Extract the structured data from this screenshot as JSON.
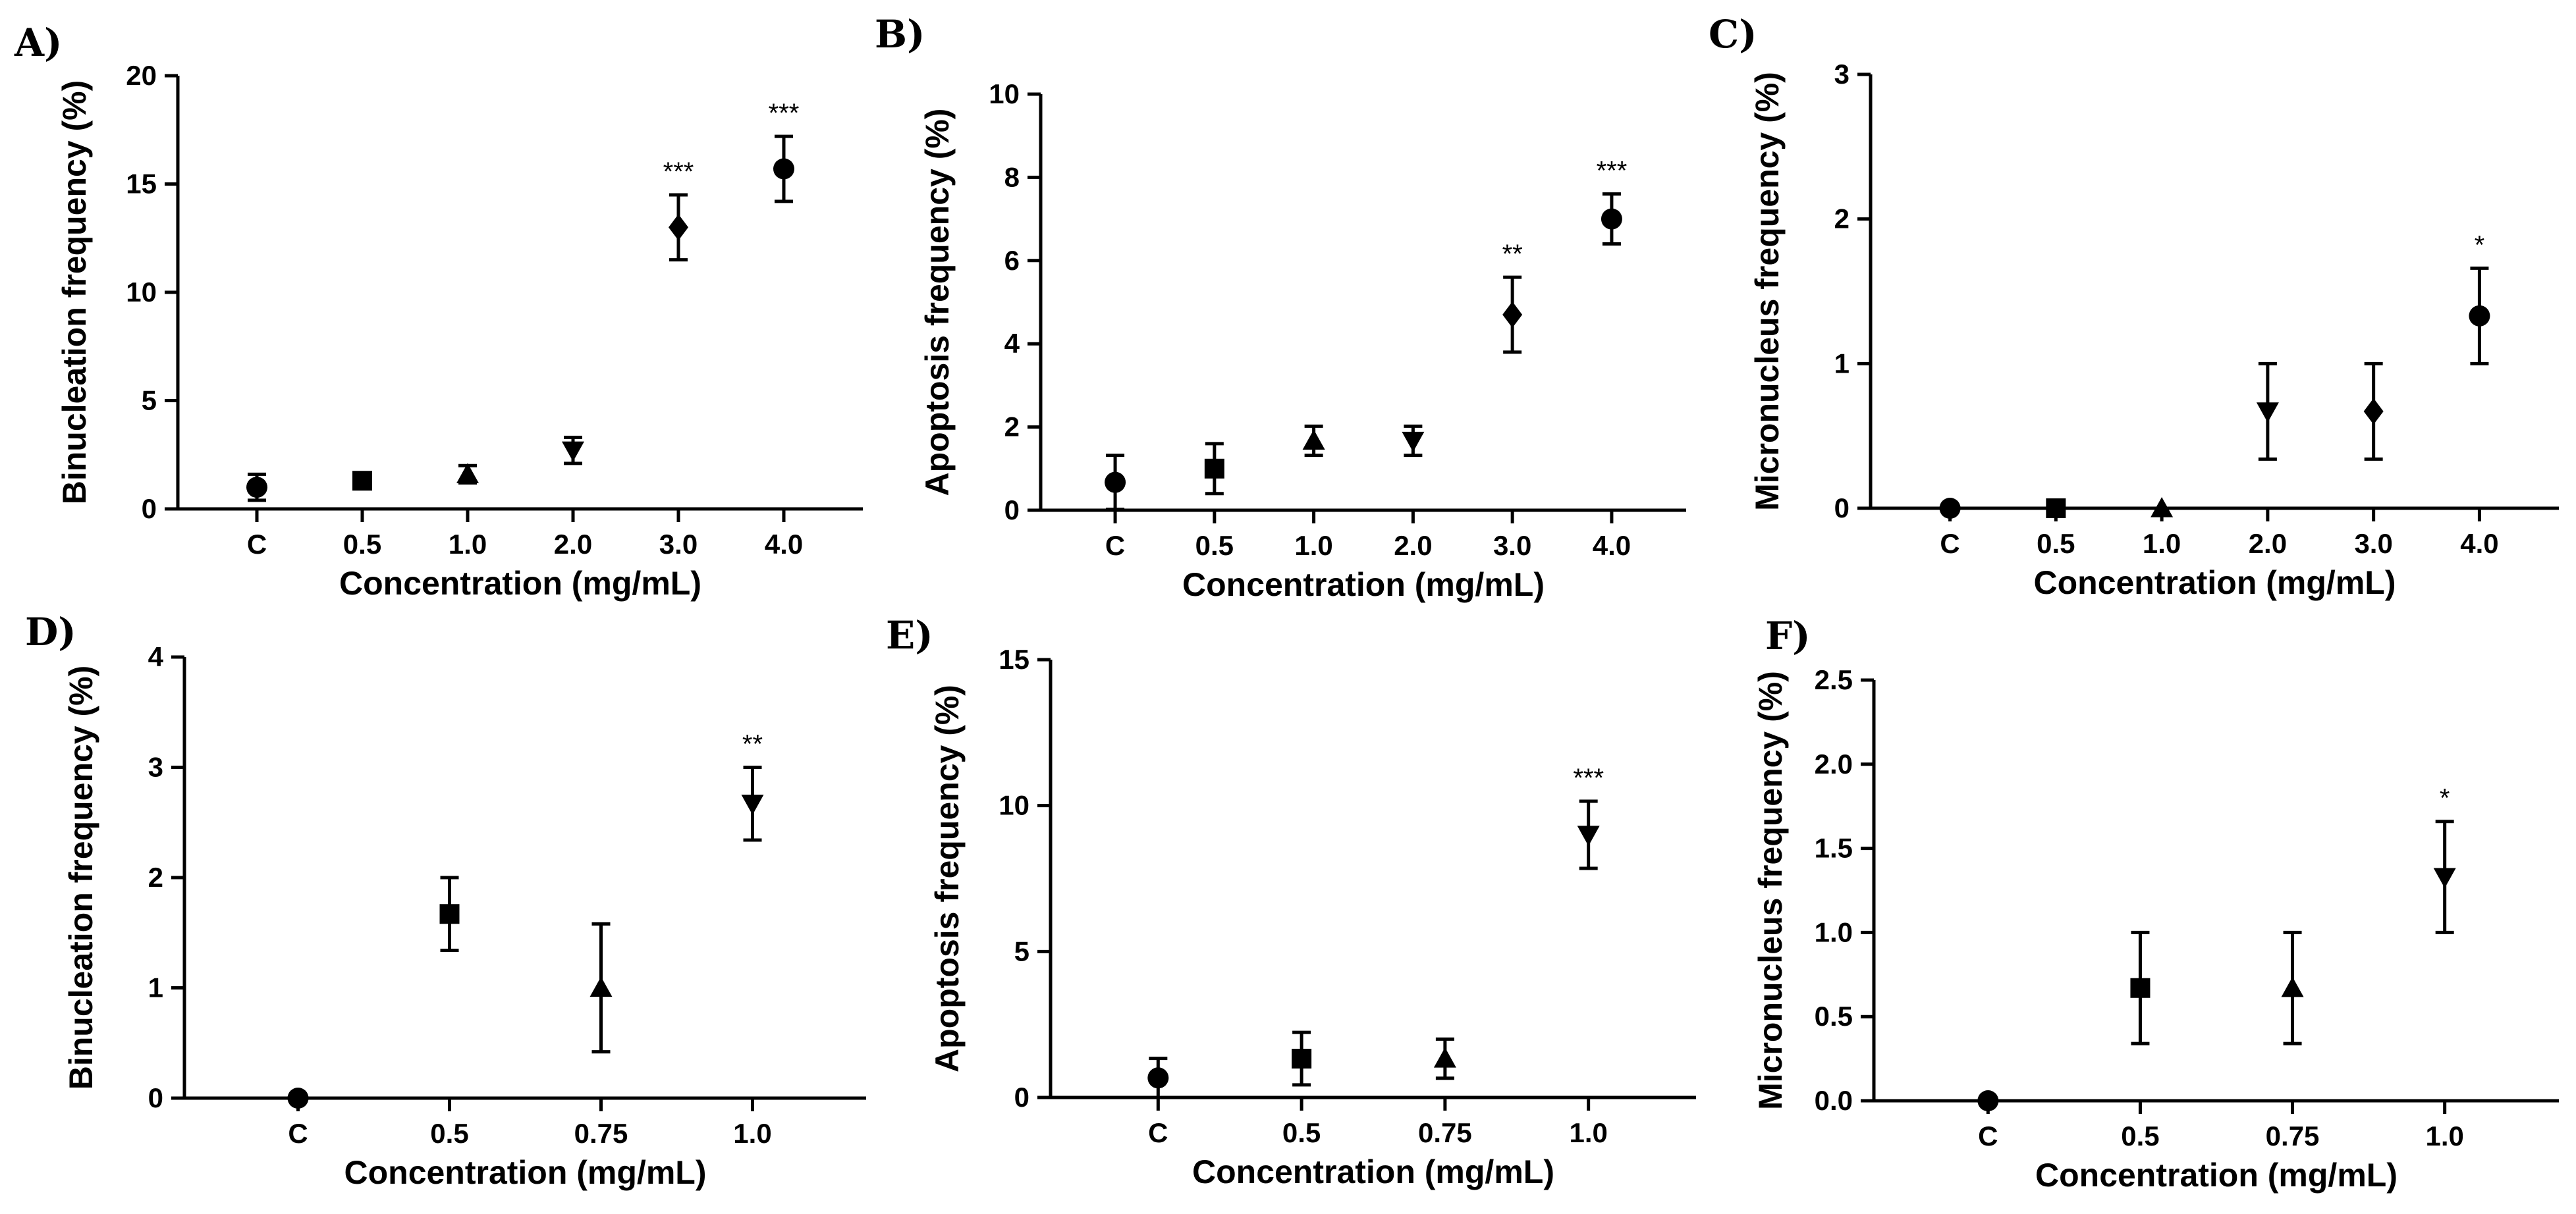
{
  "chart_data": [
    {
      "panel": "A)",
      "type": "scatter",
      "categories": [
        "C",
        "0.5",
        "1.0",
        "2.0",
        "3.0",
        "4.0"
      ],
      "values": [
        1.0,
        1.3,
        1.6,
        2.7,
        13.0,
        15.7
      ],
      "errors": [
        0.6,
        0.3,
        0.4,
        0.6,
        1.5,
        1.5
      ],
      "markers": [
        "circle",
        "square",
        "triangle-up",
        "triangle-down",
        "diamond",
        "circle"
      ],
      "significance": [
        "",
        "",
        "",
        "",
        "***",
        "***"
      ],
      "ylim": [
        0,
        20
      ],
      "yticks": [
        0,
        5,
        10,
        15,
        20
      ],
      "xlabel": "Concentration (mg/mL)",
      "ylabel": "Binucleation frequency (%)"
    },
    {
      "panel": "B)",
      "type": "scatter",
      "categories": [
        "C",
        "0.5",
        "1.0",
        "2.0",
        "3.0",
        "4.0"
      ],
      "values": [
        0.67,
        1.0,
        1.67,
        1.67,
        4.7,
        7.0
      ],
      "errors": [
        0.65,
        0.6,
        0.35,
        0.35,
        0.9,
        0.6
      ],
      "markers": [
        "circle",
        "square",
        "triangle-up",
        "triangle-down",
        "diamond",
        "circle"
      ],
      "significance": [
        "",
        "",
        "",
        "",
        "**",
        "***"
      ],
      "ylim": [
        0,
        10
      ],
      "yticks": [
        0,
        2,
        4,
        6,
        8,
        10
      ],
      "xlabel": "Concentration (mg/mL)",
      "ylabel": "Apoptosis frequency (%)"
    },
    {
      "panel": "C)",
      "type": "scatter",
      "categories": [
        "C",
        "0.5",
        "1.0",
        "2.0",
        "3.0",
        "4.0"
      ],
      "values": [
        0,
        0,
        0,
        0.67,
        0.67,
        1.33
      ],
      "errors": [
        0,
        0,
        0,
        0.33,
        0.33,
        0.33
      ],
      "markers": [
        "circle",
        "square",
        "triangle-up",
        "triangle-down",
        "diamond",
        "circle"
      ],
      "significance": [
        "",
        "",
        "",
        "",
        "",
        "*"
      ],
      "ylim": [
        0,
        3
      ],
      "yticks": [
        0,
        1,
        2,
        3
      ],
      "xlabel": "Concentration (mg/mL)",
      "ylabel": "Micronucleus frequency (%)"
    },
    {
      "panel": "D)",
      "type": "scatter",
      "categories": [
        "C",
        "0.5",
        "0.75",
        "1.0"
      ],
      "values": [
        0,
        1.67,
        1.0,
        2.67
      ],
      "errors": [
        0,
        0.33,
        0.58,
        0.33
      ],
      "markers": [
        "circle",
        "square",
        "triangle-up",
        "triangle-down"
      ],
      "significance": [
        "",
        "",
        "",
        "**"
      ],
      "ylim": [
        0,
        4
      ],
      "yticks": [
        0,
        1,
        2,
        3,
        4
      ],
      "xlabel": "Concentration (mg/mL)",
      "ylabel": "Binucleation frequency (%)"
    },
    {
      "panel": "E)",
      "type": "scatter",
      "categories": [
        "C",
        "0.5",
        "0.75",
        "1.0"
      ],
      "values": [
        0.67,
        1.33,
        1.33,
        9.0
      ],
      "errors": [
        0.67,
        0.9,
        0.67,
        1.15
      ],
      "markers": [
        "circle",
        "square",
        "triangle-up",
        "triangle-down"
      ],
      "significance": [
        "",
        "",
        "",
        "***"
      ],
      "ylim": [
        0,
        15
      ],
      "yticks": [
        0,
        5,
        10,
        15
      ],
      "xlabel": "Concentration (mg/mL)",
      "ylabel": "Apoptosis frequency (%)"
    },
    {
      "panel": "F)",
      "type": "scatter",
      "categories": [
        "C",
        "0.5",
        "0.75",
        "1.0"
      ],
      "values": [
        0,
        0.67,
        0.67,
        1.33
      ],
      "errors": [
        0,
        0.33,
        0.33,
        0.33
      ],
      "markers": [
        "circle",
        "square",
        "triangle-up",
        "triangle-down"
      ],
      "significance": [
        "",
        "",
        "",
        "*"
      ],
      "ylim": [
        0,
        2.5
      ],
      "yticks": [
        "0.0",
        "0.5",
        "1.0",
        "1.5",
        "2.0",
        "2.5"
      ],
      "xlabel": "Concentration (mg/mL)",
      "ylabel": "Micronucleus frequency (%)"
    }
  ]
}
